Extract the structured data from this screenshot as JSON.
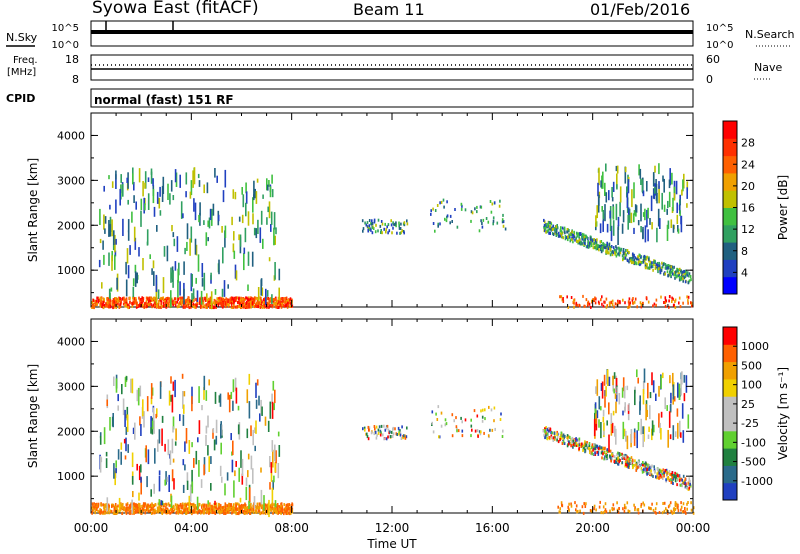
{
  "header": {
    "station": "Syowa East (fitACF)",
    "beam": "Beam 11",
    "date": "01/Feb/2016"
  },
  "status_panels": {
    "nsky_label": "N.Sky",
    "nsky_ticks": [
      "10^5",
      "10^0"
    ],
    "nsearch_label": "N.Search",
    "nsearch_ticks": [
      "10^5",
      "10^0"
    ],
    "freq_label": "Freq.",
    "freq_unit": "[MHz]",
    "freq_ticks": [
      "18",
      "8"
    ],
    "nave_label": "Nave",
    "nave_ticks": [
      "60",
      "0"
    ],
    "cpid_label": "CPID",
    "cpid_text": "normal (fast) 151 RF"
  },
  "chart_data": [
    {
      "type": "heatmap",
      "ylabel": "Slant Range [km]",
      "ylim": [
        180,
        4500
      ],
      "yticks": [
        "4000",
        "3000",
        "2000",
        "1000"
      ],
      "colorbar_label": "Power [dB]",
      "colorbar_ticks": [
        "28",
        "24",
        "20",
        "16",
        "12",
        "8",
        "4"
      ],
      "colorbar_colors": [
        "#0000ff",
        "#2040c0",
        "#206080",
        "#30a060",
        "#40c040",
        "#c0c000",
        "#f0a000",
        "#ff6000",
        "#ff3000",
        "#ff0000"
      ]
    },
    {
      "type": "heatmap",
      "ylabel": "Slant Range [km]",
      "xlabel": "Time UT",
      "ylim": [
        180,
        4500
      ],
      "yticks": [
        "4000",
        "3000",
        "2000",
        "1000"
      ],
      "xticks": [
        "00:00",
        "04:00",
        "08:00",
        "12:00",
        "16:00",
        "20:00",
        "00:00"
      ],
      "colorbar_label": "Velocity [m s⁻¹]",
      "colorbar_ticks": [
        "1000",
        "500",
        "100",
        "25",
        "-25",
        "-100",
        "-500",
        "-1000"
      ],
      "colorbar_colors": [
        "#2040c0",
        "#2a6a8a",
        "#208040",
        "#60d030",
        "#c0c0c0",
        "#c0c0c0",
        "#f0d000",
        "#f0a000",
        "#ff6000",
        "#ff0000"
      ]
    }
  ]
}
